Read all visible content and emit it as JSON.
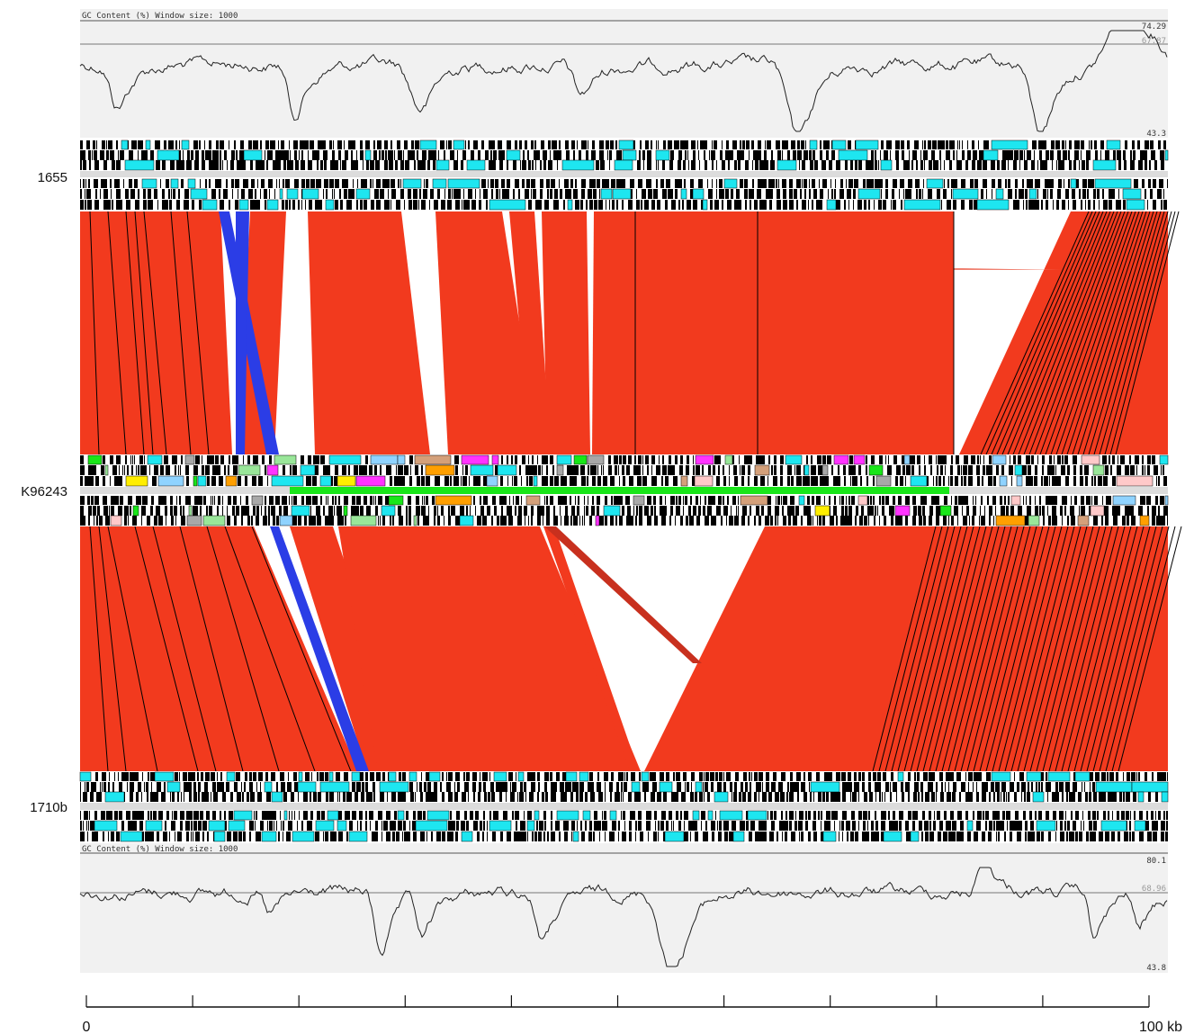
{
  "gc_top": {
    "header": "GC Content (%)  Window size: 1000",
    "max_label": "74.29",
    "mean_label": "67.87",
    "min_label": "43.3",
    "max": 74.29,
    "mean": 67.87,
    "min": 43.3
  },
  "gc_bottom": {
    "header": "GC Content (%)  Window size: 1000",
    "max_label": "80.1",
    "mean_label": "68.96",
    "min_label": "43.8",
    "max": 80.1,
    "mean": 68.96,
    "min": 43.8
  },
  "genomes": [
    {
      "name": "1655"
    },
    {
      "name": "K96243"
    },
    {
      "name": "1710b"
    }
  ],
  "scale": {
    "start_label": "0",
    "end_label": "100 kb",
    "start_kb": 0,
    "end_kb": 100,
    "major_ticks": 10
  },
  "colors": {
    "forward_match": "#f23a1e",
    "reverse_match": "#2b3de6",
    "cds_default": "#ffffff",
    "cds_highlight": "#1ee6f0",
    "track_background": "#f2f2f2",
    "graph_background": "#f1f1f1"
  },
  "annotation_palette": [
    "#ffee00",
    "#ff9f00",
    "#a8a8a8",
    "#19e619",
    "#ff33ff",
    "#ffc9c9",
    "#99e699",
    "#d4a07a",
    "#8fd3ff"
  ]
}
